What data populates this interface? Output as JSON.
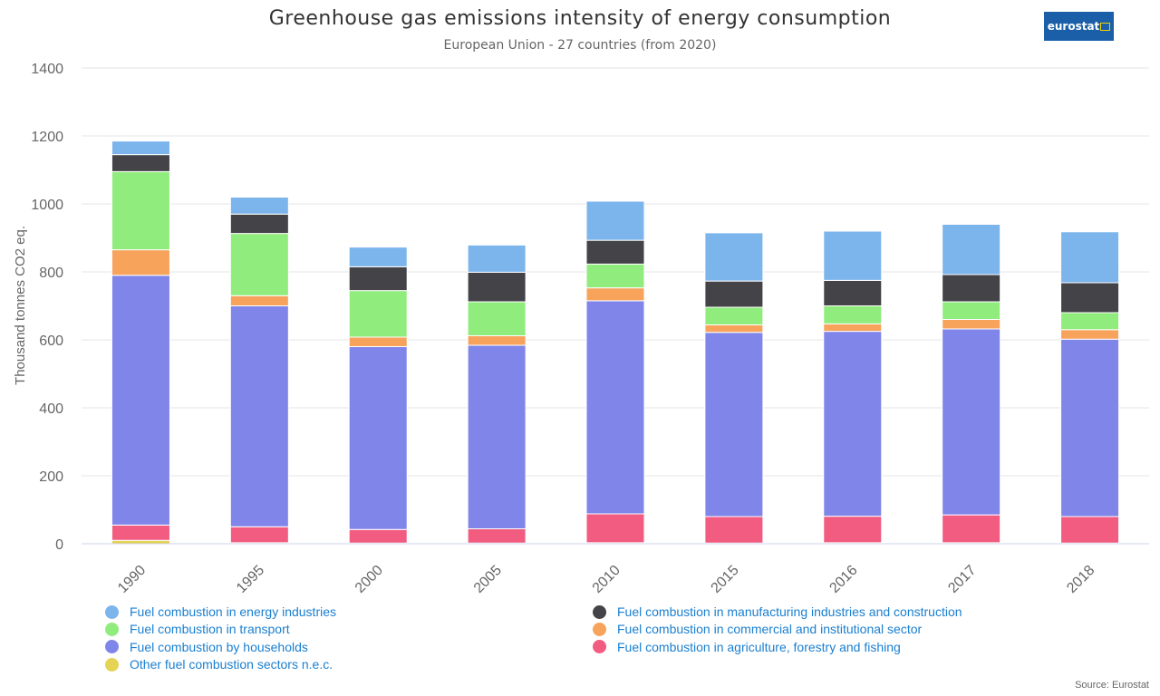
{
  "header": {
    "title": "Greenhouse gas emissions intensity of energy consumption",
    "subtitle": "European Union - 27 countries (from 2020)",
    "logo_text": "eurostat"
  },
  "source_label": "Source: Eurostat",
  "chart_data": {
    "type": "bar",
    "stacked": true,
    "title": "Greenhouse gas emissions intensity of energy consumption",
    "subtitle": "European Union - 27 countries (from 2020)",
    "xlabel": "",
    "ylabel": "Thousand tonnes CO2 eq.",
    "ylim": [
      0,
      1400
    ],
    "yticks": [
      0,
      200,
      400,
      600,
      800,
      1000,
      1200,
      1400
    ],
    "grid": true,
    "legend_position": "bottom",
    "categories": [
      "1990",
      "1995",
      "2000",
      "2005",
      "2010",
      "2015",
      "2016",
      "2017",
      "2018"
    ],
    "series": [
      {
        "name": "Other fuel combustion sectors n.e.c.",
        "color": "#e4d354",
        "values": [
          10,
          3,
          2,
          2,
          3,
          2,
          3,
          3,
          2
        ]
      },
      {
        "name": "Fuel combustion in agriculture, forestry and fishing",
        "color": "#f15c80",
        "values": [
          45,
          47,
          40,
          42,
          85,
          78,
          78,
          82,
          78
        ]
      },
      {
        "name": "Fuel combustion by households",
        "color": "#8085e9",
        "values": [
          735,
          650,
          538,
          540,
          627,
          542,
          544,
          547,
          522
        ]
      },
      {
        "name": "Fuel combustion in commercial and institutional sector",
        "color": "#f7a35c",
        "values": [
          75,
          30,
          28,
          28,
          38,
          22,
          22,
          28,
          28
        ]
      },
      {
        "name": "Fuel combustion in transport",
        "color": "#90ed7d",
        "values": [
          230,
          183,
          137,
          100,
          70,
          52,
          53,
          52,
          50
        ]
      },
      {
        "name": "Fuel combustion in manufacturing industries and construction",
        "color": "#434348",
        "values": [
          50,
          57,
          70,
          87,
          70,
          77,
          75,
          80,
          88
        ]
      },
      {
        "name": "Fuel combustion in energy industries",
        "color": "#7cb5ec",
        "values": [
          40,
          50,
          58,
          80,
          115,
          142,
          145,
          148,
          150
        ]
      }
    ]
  },
  "legend": {
    "items": [
      {
        "label": "Fuel combustion in energy industries",
        "color": "#7cb5ec"
      },
      {
        "label": "Fuel combustion in manufacturing industries and construction",
        "color": "#434348"
      },
      {
        "label": "Fuel combustion in transport",
        "color": "#90ed7d"
      },
      {
        "label": "Fuel combustion in commercial and institutional sector",
        "color": "#f7a35c"
      },
      {
        "label": "Fuel combustion by households",
        "color": "#8085e9"
      },
      {
        "label": "Fuel combustion in agriculture, forestry and fishing",
        "color": "#f15c80"
      },
      {
        "label": "Other fuel combustion sectors n.e.c.",
        "color": "#e4d354"
      }
    ]
  }
}
